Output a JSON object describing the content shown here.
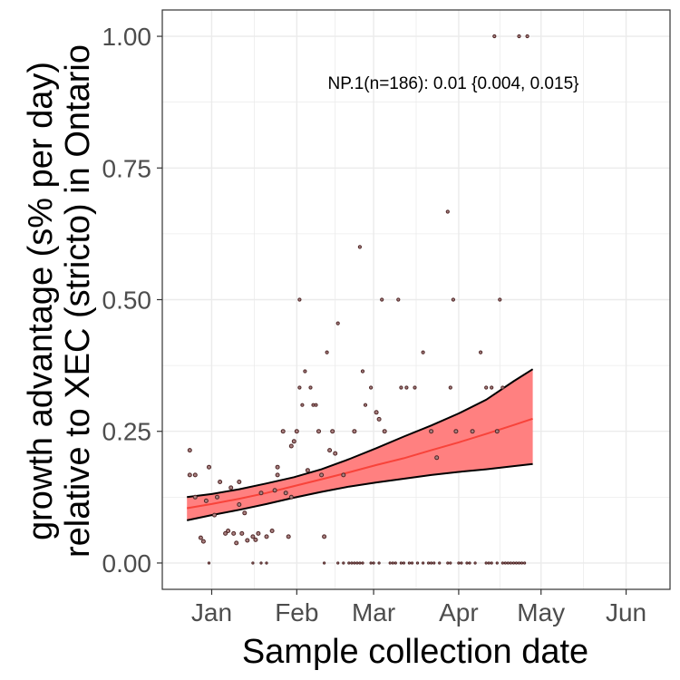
{
  "chart_data": {
    "type": "scatter",
    "title": "",
    "xlabel": "Sample collection date",
    "ylabel_lines": [
      "growth advantage (s% per day)",
      "relative to XEC (stricto) in Ontario"
    ],
    "annotation": "NP.1(n=186): 0.01 {0.004, 0.015}",
    "x_ticks": [
      "Jan",
      "Feb",
      "Mar",
      "Apr",
      "May",
      "Jun"
    ],
    "y_ticks": [
      "0.00",
      "0.25",
      "0.50",
      "0.75",
      "1.00"
    ],
    "y_tick_values": [
      0,
      0.25,
      0.5,
      0.75,
      1.0
    ],
    "ylim": [
      -0.05,
      1.05
    ],
    "xlim_days_from_jan1": [
      -18,
      167
    ],
    "x_tick_days": [
      0,
      31,
      59,
      90,
      120,
      151
    ],
    "grid": true,
    "colors": {
      "ribbon": "#ff8080",
      "fit": "#f8433a",
      "bounds": "#000000",
      "points": "#4d2525",
      "panel_border": "#333333",
      "grid": "#ebebeb"
    },
    "fit": {
      "x": [
        -9,
        0,
        10,
        20,
        30,
        40,
        50,
        60,
        70,
        80,
        90,
        100,
        110,
        117
      ],
      "mid": [
        0.104,
        0.112,
        0.122,
        0.133,
        0.146,
        0.159,
        0.172,
        0.186,
        0.199,
        0.214,
        0.229,
        0.245,
        0.262,
        0.274
      ],
      "lower": [
        0.081,
        0.091,
        0.101,
        0.112,
        0.124,
        0.135,
        0.145,
        0.153,
        0.16,
        0.167,
        0.173,
        0.178,
        0.184,
        0.188
      ],
      "upper": [
        0.125,
        0.131,
        0.14,
        0.151,
        0.163,
        0.178,
        0.197,
        0.218,
        0.24,
        0.261,
        0.284,
        0.31,
        0.345,
        0.368
      ]
    },
    "points": [
      [
        -8,
        0.214
      ],
      [
        -8,
        0.167
      ],
      [
        -6,
        0.167
      ],
      [
        -6,
        0.125
      ],
      [
        -4,
        0.048
      ],
      [
        -3,
        0.041
      ],
      [
        -2,
        0.118
      ],
      [
        -1,
        0.182
      ],
      [
        1,
        0.091
      ],
      [
        2,
        0.125
      ],
      [
        3,
        0.154
      ],
      [
        5,
        0.056
      ],
      [
        6,
        0.061
      ],
      [
        7,
        0.143
      ],
      [
        8,
        0.056
      ],
      [
        9,
        0.038
      ],
      [
        10,
        0.154
      ],
      [
        10,
        0.111
      ],
      [
        11,
        0.056
      ],
      [
        12,
        0.095
      ],
      [
        13,
        0.043
      ],
      [
        15,
        0.05
      ],
      [
        16,
        0.044
      ],
      [
        17,
        0.056
      ],
      [
        18,
        0.133
      ],
      [
        20,
        0.05
      ],
      [
        22,
        0.061
      ],
      [
        23,
        0.138
      ],
      [
        24,
        0.167
      ],
      [
        24,
        0.182
      ],
      [
        26,
        0.25
      ],
      [
        27,
        0.133
      ],
      [
        28,
        0.05
      ],
      [
        29,
        0.222
      ],
      [
        29,
        0.125
      ],
      [
        30,
        0.231
      ],
      [
        31,
        0.25
      ],
      [
        32,
        0.333
      ],
      [
        32,
        0.5
      ],
      [
        33,
        0.3
      ],
      [
        34,
        0.364
      ],
      [
        35,
        0.176
      ],
      [
        36,
        0.333
      ],
      [
        37,
        0.3
      ],
      [
        38,
        0.3
      ],
      [
        39,
        0.25
      ],
      [
        40,
        0.167
      ],
      [
        41,
        0.05
      ],
      [
        42,
        0.4
      ],
      [
        43,
        0.214
      ],
      [
        44,
        0.25
      ],
      [
        45,
        0.208
      ],
      [
        46,
        0.455
      ],
      [
        48,
        0.167
      ],
      [
        52,
        0.25
      ],
      [
        54,
        0.6
      ],
      [
        55,
        0.364
      ],
      [
        56,
        0.3
      ],
      [
        58,
        0.333
      ],
      [
        60,
        0.286
      ],
      [
        61,
        0.273
      ],
      [
        62,
        0.5
      ],
      [
        63,
        0.25
      ],
      [
        68,
        0.5
      ],
      [
        69,
        0.333
      ],
      [
        71,
        0.333
      ],
      [
        74,
        0.333
      ],
      [
        77,
        0.4
      ],
      [
        80,
        0.25
      ],
      [
        82,
        0.2
      ],
      [
        86,
        0.667
      ],
      [
        87,
        0.333
      ],
      [
        88,
        0.5
      ],
      [
        89,
        0.25
      ],
      [
        95,
        0.25
      ],
      [
        98,
        0.4
      ],
      [
        100,
        0.333
      ],
      [
        102,
        0.333
      ],
      [
        103,
        1.0
      ],
      [
        104,
        0.25
      ],
      [
        105,
        0.5
      ],
      [
        106,
        0.333
      ],
      [
        112,
        1.0
      ],
      [
        115,
        1.0
      ],
      [
        -1,
        0
      ],
      [
        15,
        0
      ],
      [
        18,
        0
      ],
      [
        20,
        0
      ],
      [
        41,
        0
      ],
      [
        46,
        0
      ],
      [
        48,
        0
      ],
      [
        50,
        0
      ],
      [
        51,
        0
      ],
      [
        52,
        0
      ],
      [
        53,
        0
      ],
      [
        54,
        0
      ],
      [
        55,
        0
      ],
      [
        58,
        0
      ],
      [
        59,
        0
      ],
      [
        61,
        0
      ],
      [
        65,
        0
      ],
      [
        66,
        0
      ],
      [
        67,
        0
      ],
      [
        69,
        0
      ],
      [
        70,
        0
      ],
      [
        72,
        0
      ],
      [
        73,
        0
      ],
      [
        75,
        0
      ],
      [
        77,
        0
      ],
      [
        79,
        0
      ],
      [
        80,
        0
      ],
      [
        81,
        0
      ],
      [
        83,
        0
      ],
      [
        86,
        0
      ],
      [
        87,
        0
      ],
      [
        90,
        0
      ],
      [
        91,
        0
      ],
      [
        93,
        0
      ],
      [
        94,
        0
      ],
      [
        96,
        0
      ],
      [
        100,
        0
      ],
      [
        101,
        0
      ],
      [
        102,
        0
      ],
      [
        104,
        0
      ],
      [
        106,
        0
      ],
      [
        107,
        0
      ],
      [
        108,
        0
      ],
      [
        109,
        0
      ],
      [
        110,
        0
      ],
      [
        111,
        0
      ],
      [
        112,
        0
      ],
      [
        113,
        0
      ],
      [
        114,
        0
      ]
    ]
  }
}
